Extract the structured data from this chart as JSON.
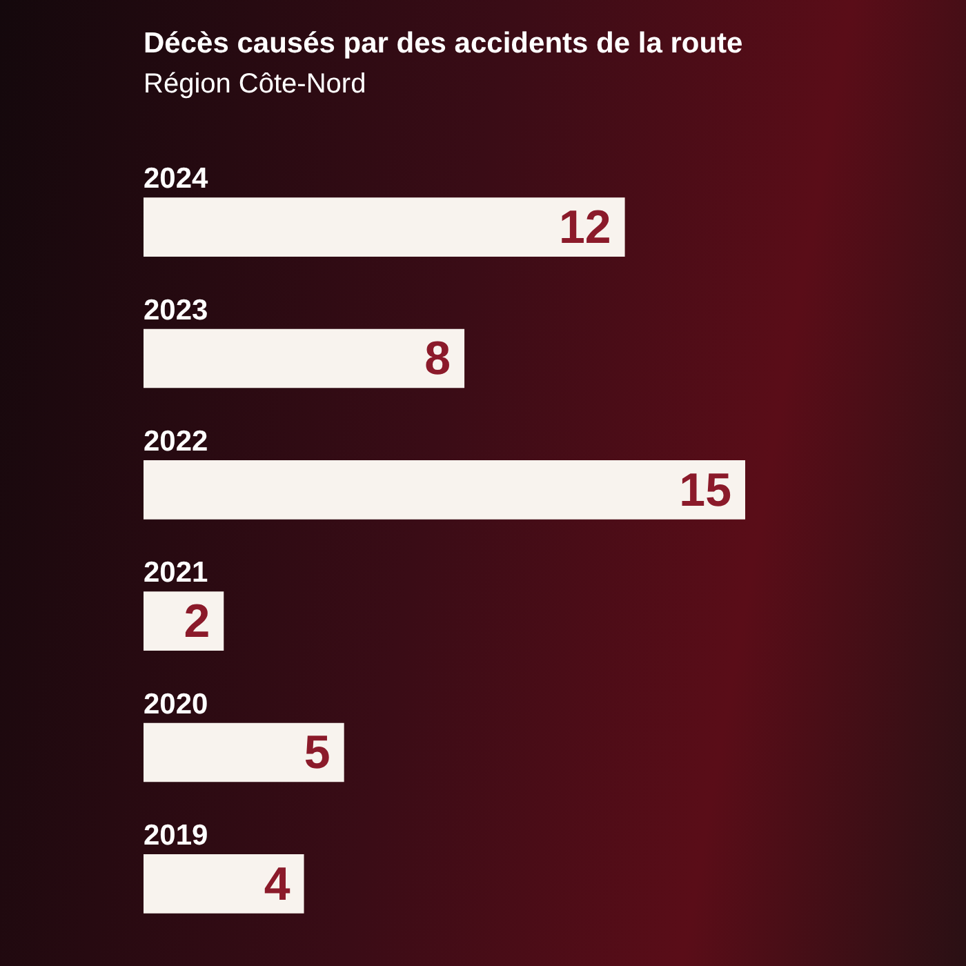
{
  "chart_data": {
    "type": "bar",
    "orientation": "horizontal",
    "title": "Décès causés par des accidents de la route",
    "subtitle": "Région Côte-Nord",
    "categories": [
      "2024",
      "2023",
      "2022",
      "2021",
      "2020",
      "2019"
    ],
    "values": [
      12,
      8,
      15,
      2,
      5,
      4
    ],
    "color": "#f8f3ee",
    "data_labels": true
  }
}
